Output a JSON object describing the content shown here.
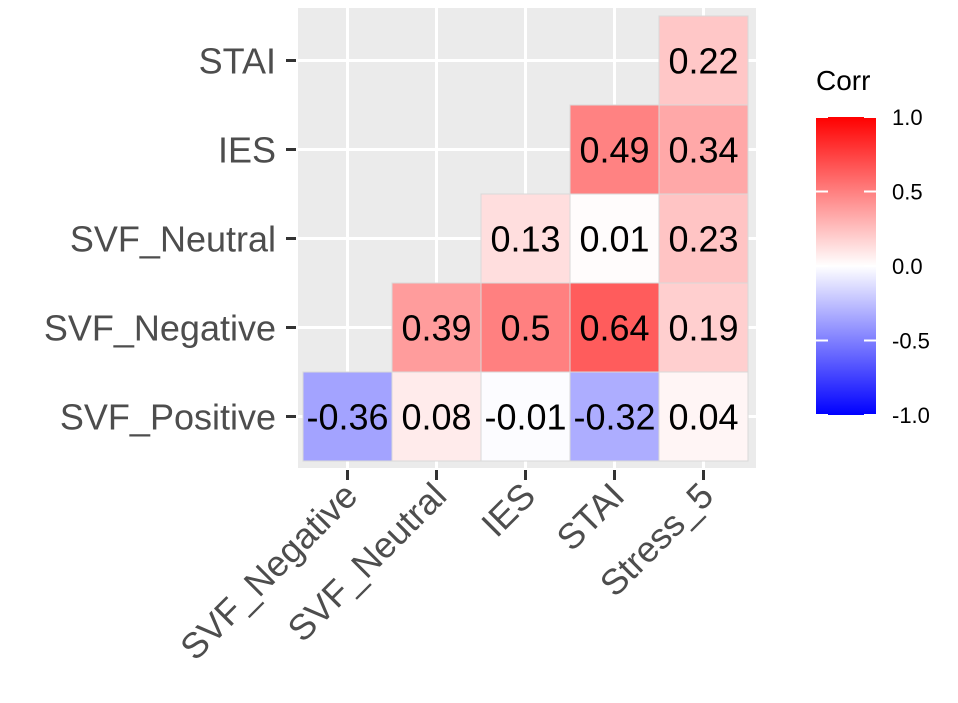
{
  "chart_data": {
    "type": "heatmap",
    "title": "",
    "x_categories": [
      "SVF_Negative",
      "SVF_Neutral",
      "IES",
      "STAI",
      "Stress_5"
    ],
    "y_categories": [
      "SVF_Positive",
      "SVF_Negative",
      "SVF_Neutral",
      "IES",
      "STAI"
    ],
    "cells": [
      {
        "x": "SVF_Negative",
        "y": "SVF_Positive",
        "value": -0.36,
        "label": "-0.36"
      },
      {
        "x": "SVF_Neutral",
        "y": "SVF_Positive",
        "value": 0.08,
        "label": "0.08"
      },
      {
        "x": "IES",
        "y": "SVF_Positive",
        "value": -0.01,
        "label": "-0.01"
      },
      {
        "x": "STAI",
        "y": "SVF_Positive",
        "value": -0.32,
        "label": "-0.32"
      },
      {
        "x": "Stress_5",
        "y": "SVF_Positive",
        "value": 0.04,
        "label": "0.04"
      },
      {
        "x": "SVF_Neutral",
        "y": "SVF_Negative",
        "value": 0.39,
        "label": "0.39"
      },
      {
        "x": "IES",
        "y": "SVF_Negative",
        "value": 0.5,
        "label": "0.5"
      },
      {
        "x": "STAI",
        "y": "SVF_Negative",
        "value": 0.64,
        "label": "0.64"
      },
      {
        "x": "Stress_5",
        "y": "SVF_Negative",
        "value": 0.19,
        "label": "0.19"
      },
      {
        "x": "IES",
        "y": "SVF_Neutral",
        "value": 0.13,
        "label": "0.13"
      },
      {
        "x": "STAI",
        "y": "SVF_Neutral",
        "value": 0.01,
        "label": "0.01"
      },
      {
        "x": "Stress_5",
        "y": "SVF_Neutral",
        "value": 0.23,
        "label": "0.23"
      },
      {
        "x": "STAI",
        "y": "IES",
        "value": 0.49,
        "label": "0.49"
      },
      {
        "x": "Stress_5",
        "y": "IES",
        "value": 0.34,
        "label": "0.34"
      },
      {
        "x": "Stress_5",
        "y": "STAI",
        "value": 0.22,
        "label": "0.22"
      }
    ],
    "legend": {
      "title": "Corr",
      "ticks": [
        {
          "value": 1.0,
          "label": "1.0"
        },
        {
          "value": 0.5,
          "label": "0.5"
        },
        {
          "value": 0.0,
          "label": "0.0"
        },
        {
          "value": -0.5,
          "label": "-0.5"
        },
        {
          "value": -1.0,
          "label": "-1.0"
        }
      ],
      "range": [
        -1,
        1
      ],
      "placement": "right"
    },
    "colors": {
      "low": "#0000ff",
      "mid": "#ffffff",
      "high": "#ff0000",
      "panel_background": "#ebebeb",
      "grid": "#ffffff",
      "tile_border": "#d9d9d9",
      "axis_text": "#4d4d4d",
      "tick_mark": "#333333"
    }
  }
}
